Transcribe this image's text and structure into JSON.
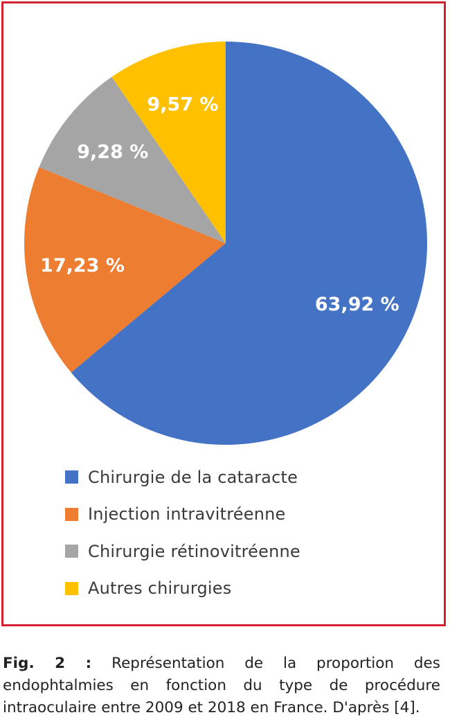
{
  "chart_data": {
    "type": "pie",
    "title": "",
    "slices": [
      {
        "label": "Chirurgie de la cataracte",
        "value": 63.92,
        "display": "63,92 %",
        "color": "#4472c4"
      },
      {
        "label": "Injection intravitréenne",
        "value": 17.23,
        "display": "17,23 %",
        "color": "#ed7d31"
      },
      {
        "label": "Chirurgie rétinovitréenne",
        "value": 9.28,
        "display": "9,28 %",
        "color": "#a5a5a5"
      },
      {
        "label": "Autres chirurgies",
        "value": 9.57,
        "display": "9,57 %",
        "color": "#ffc000"
      }
    ],
    "start_angle_deg": 0,
    "direction": "clockwise",
    "legend_position": "bottom"
  },
  "caption": {
    "label": "Fig. 2 :",
    "text": "Représentation de la proportion des endophtalmies en fonction du type de procédure intraoculaire entre 2009 et 2018 en France. D'après [4]."
  },
  "colors": {
    "frame": "#d4202f",
    "slice_label_text": "#ffffff"
  }
}
